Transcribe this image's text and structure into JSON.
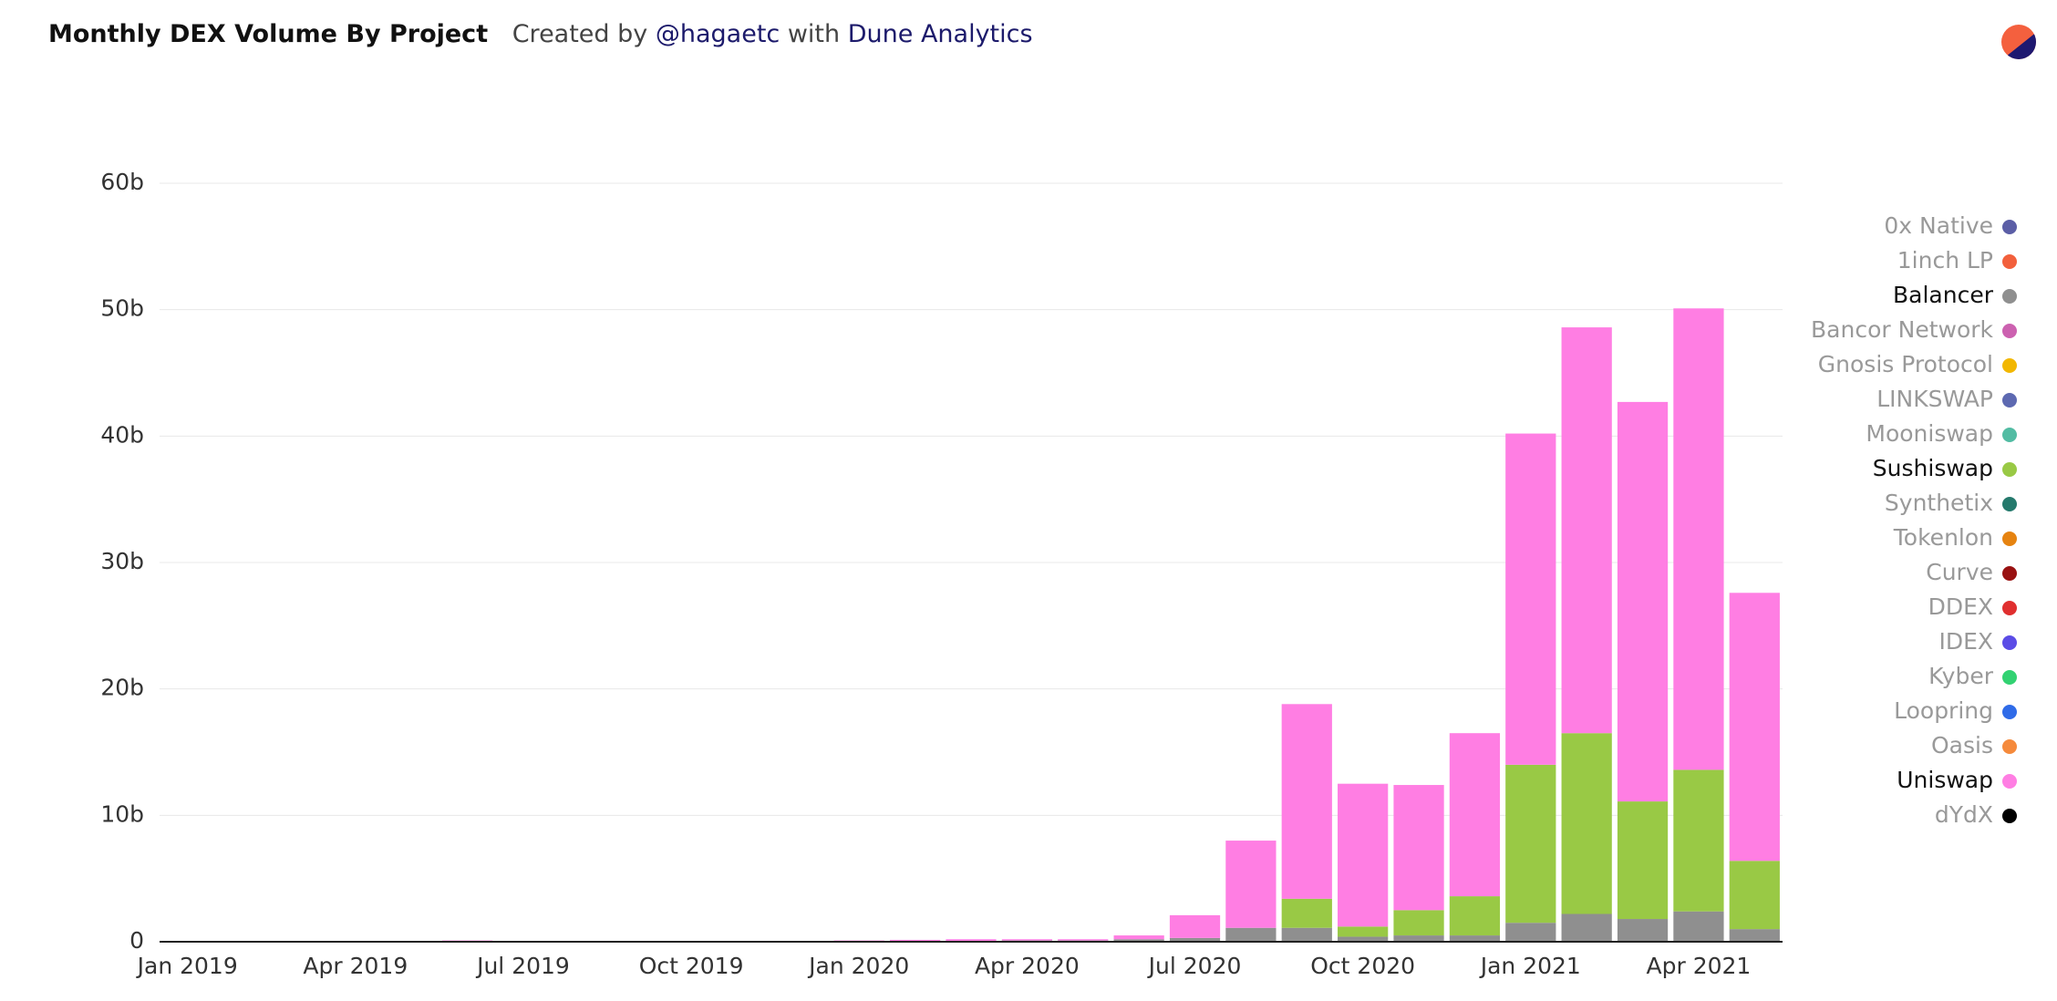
{
  "chart_data": {
    "type": "stacked-bar",
    "title": "Monthly DEX Volume By Project",
    "byline": {
      "created_by": "Created by",
      "author": "@hagaetc",
      "with": "with",
      "platform": "Dune Analytics"
    },
    "categories": [
      "Jan 2019",
      null,
      null,
      "Apr 2019",
      null,
      null,
      "Jul 2019",
      null,
      null,
      "Oct 2019",
      null,
      null,
      "Jan 2020",
      null,
      null,
      "Apr 2020",
      null,
      null,
      "Jul 2020",
      null,
      null,
      "Oct 2020",
      null,
      null,
      "Jan 2021",
      null,
      null,
      "Apr 2021",
      null
    ],
    "series": [
      {
        "name": "Balancer",
        "color": "#8f8f8f",
        "values": [
          0,
          0,
          0,
          0,
          0,
          0,
          0,
          0,
          0,
          0,
          0,
          0,
          0,
          0,
          0.05,
          0.1,
          0.1,
          0.2,
          0.3,
          1.1,
          1.1,
          0.4,
          0.5,
          0.5,
          1.5,
          2.2,
          1.8,
          2.4,
          1.0
        ]
      },
      {
        "name": "Sushiswap",
        "color": "#99c945",
        "values": [
          0,
          0,
          0,
          0,
          0,
          0,
          0,
          0,
          0,
          0,
          0,
          0,
          0,
          0,
          0,
          0,
          0,
          0,
          0,
          0,
          2.3,
          0.8,
          2.0,
          3.1,
          12.5,
          14.3,
          9.3,
          11.2,
          5.4
        ]
      },
      {
        "name": "Uniswap",
        "color": "#ff7ee3",
        "values": [
          0.05,
          0.05,
          0.05,
          0.05,
          0.07,
          0.1,
          0.07,
          0.06,
          0.05,
          0.06,
          0.06,
          0.05,
          0.1,
          0.15,
          0.15,
          0.1,
          0.1,
          0.3,
          1.8,
          6.9,
          15.4,
          11.3,
          9.9,
          12.9,
          26.2,
          32.1,
          31.6,
          36.5,
          21.2
        ]
      }
    ],
    "legend": [
      {
        "name": "0x Native",
        "color": "#5b5ea6",
        "active": false
      },
      {
        "name": "1inch LP",
        "color": "#f2603c",
        "active": false
      },
      {
        "name": "Balancer",
        "color": "#8f8f8f",
        "active": true
      },
      {
        "name": "Bancor Network",
        "color": "#cc61b0",
        "active": false
      },
      {
        "name": "Gnosis Protocol",
        "color": "#f2b701",
        "active": false
      },
      {
        "name": "LINKSWAP",
        "color": "#5d69b1",
        "active": false
      },
      {
        "name": "Mooniswap",
        "color": "#52bca3",
        "active": false
      },
      {
        "name": "Sushiswap",
        "color": "#99c945",
        "active": true
      },
      {
        "name": "Synthetix",
        "color": "#24796c",
        "active": false
      },
      {
        "name": "Tokenlon",
        "color": "#e68310",
        "active": false
      },
      {
        "name": "Curve",
        "color": "#991111",
        "active": false
      },
      {
        "name": "DDEX",
        "color": "#e02f2f",
        "active": false
      },
      {
        "name": "IDEX",
        "color": "#5b4ce6",
        "active": false
      },
      {
        "name": "Kyber",
        "color": "#32d272",
        "active": false
      },
      {
        "name": "Loopring",
        "color": "#2f6be8",
        "active": false
      },
      {
        "name": "Oasis",
        "color": "#f58a3c",
        "active": false
      },
      {
        "name": "Uniswap",
        "color": "#ff7ee3",
        "active": true
      },
      {
        "name": "dYdX",
        "color": "#000000",
        "active": false
      }
    ],
    "ylim": [
      0,
      60
    ],
    "yticks": [
      0,
      {
        "value": 10,
        "label": "10b"
      },
      {
        "value": 20,
        "label": "20b"
      },
      {
        "value": 30,
        "label": "30b"
      },
      {
        "value": 40,
        "label": "40b"
      },
      {
        "value": 50,
        "label": "50b"
      },
      {
        "value": 60,
        "label": "60b"
      }
    ],
    "grid": true
  }
}
